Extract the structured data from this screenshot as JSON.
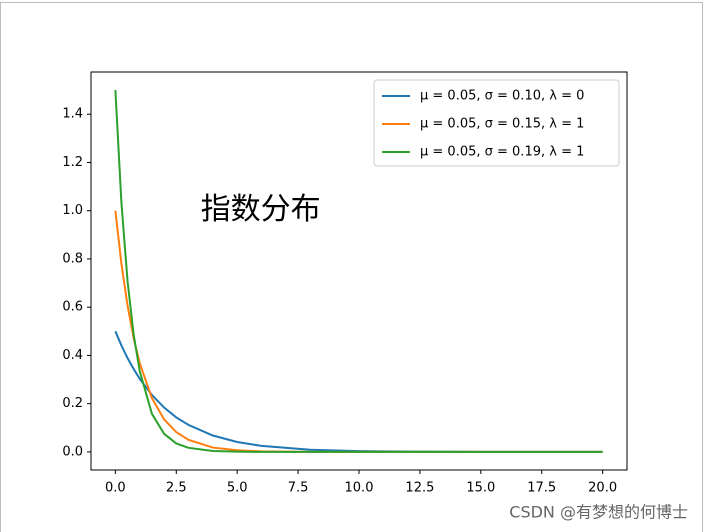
{
  "chart_data": {
    "type": "line",
    "annotation": "指数分布",
    "watermark": "CSDN @有梦想的何博士",
    "x": [
      0,
      0.25,
      0.5,
      0.75,
      1,
      1.5,
      2,
      2.5,
      3,
      4,
      5,
      6,
      8,
      10,
      12.5,
      15,
      20
    ],
    "series": [
      {
        "name": "μ = 0.05,  σ = 0.10,  λ = 0",
        "color": "#1f77b4",
        "values": [
          0.5,
          0.441,
          0.389,
          0.344,
          0.303,
          0.236,
          0.184,
          0.143,
          0.112,
          0.068,
          0.041,
          0.025,
          0.009,
          0.003,
          0.001,
          0,
          0
        ]
      },
      {
        "name": "μ = 0.05,  σ = 0.15,  λ = 1",
        "color": "#ff7f0e",
        "values": [
          1,
          0.779,
          0.607,
          0.472,
          0.368,
          0.223,
          0.135,
          0.082,
          0.05,
          0.018,
          0.007,
          0.002,
          0,
          0,
          0,
          0,
          0
        ]
      },
      {
        "name": "μ = 0.05,  σ = 0.19,  λ = 1",
        "color": "#2ca02c",
        "values": [
          1.5,
          1.031,
          0.708,
          0.487,
          0.335,
          0.158,
          0.075,
          0.035,
          0.017,
          0.004,
          0.001,
          0,
          0,
          0,
          0,
          0,
          0
        ]
      }
    ],
    "xlim": [
      -1,
      21
    ],
    "xticks": [
      0,
      2.5,
      5,
      7.5,
      10,
      12.5,
      15,
      17.5,
      20
    ],
    "ylim": [
      -0.075,
      1.575
    ],
    "yticks": [
      0,
      0.2,
      0.4,
      0.6,
      0.8,
      1,
      1.2,
      1.4
    ],
    "legend": "upper right"
  }
}
